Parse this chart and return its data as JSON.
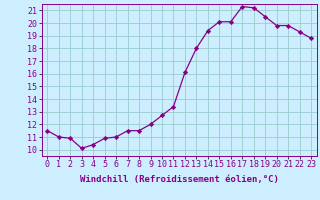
{
  "hours": [
    0,
    1,
    2,
    3,
    4,
    5,
    6,
    7,
    8,
    9,
    10,
    11,
    12,
    13,
    14,
    15,
    16,
    17,
    18,
    19,
    20,
    21,
    22,
    23
  ],
  "values": [
    11.5,
    11.0,
    10.9,
    10.1,
    10.4,
    10.9,
    11.0,
    11.5,
    11.5,
    12.0,
    12.7,
    13.4,
    16.1,
    18.0,
    19.4,
    20.1,
    20.1,
    21.3,
    21.2,
    20.5,
    19.8,
    19.8,
    19.3,
    18.8
  ],
  "line_color": "#880088",
  "marker": "D",
  "marker_size": 2.2,
  "bg_color": "#cceeff",
  "grid_color": "#99cccc",
  "xlabel": "Windchill (Refroidissement éolien,°C)",
  "ylim": [
    9.5,
    21.5
  ],
  "yticks": [
    10,
    11,
    12,
    13,
    14,
    15,
    16,
    17,
    18,
    19,
    20,
    21
  ],
  "xlim": [
    -0.5,
    23.5
  ],
  "xtick_labels": [
    "0",
    "1",
    "2",
    "3",
    "4",
    "5",
    "6",
    "7",
    "8",
    "9",
    "10",
    "11",
    "12",
    "13",
    "14",
    "15",
    "16",
    "17",
    "18",
    "19",
    "20",
    "21",
    "22",
    "23"
  ],
  "xlabel_fontsize": 6.5,
  "tick_fontsize": 6.0,
  "label_color": "#880088"
}
